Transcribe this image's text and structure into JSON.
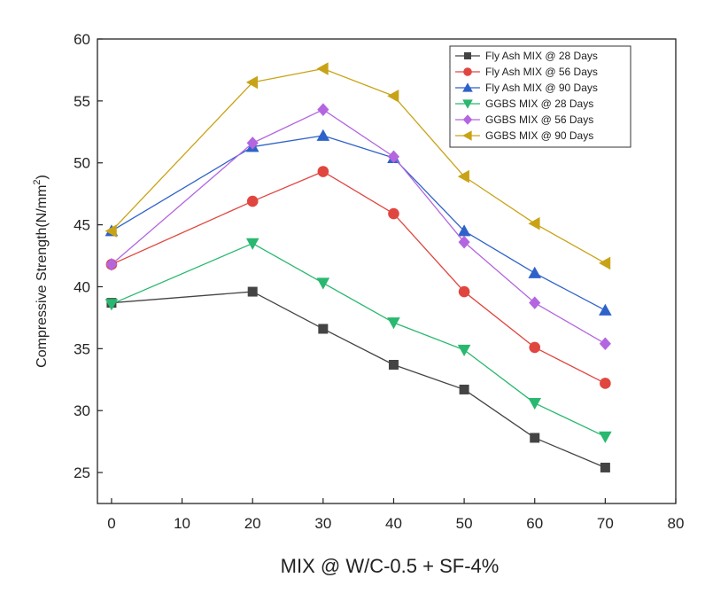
{
  "chart_data": {
    "type": "line",
    "title": "",
    "xlabel": "MIX @ W/C-0.5 + SF-4%",
    "ylabel": "Compressive Strength(N/mm",
    "ylabel_sup": "2",
    "ylabel_close": ")",
    "x": [
      0,
      20,
      30,
      40,
      50,
      60,
      70
    ],
    "xlim": [
      -2,
      80
    ],
    "ylim": [
      22.5,
      60
    ],
    "xticks": [
      0,
      10,
      20,
      30,
      40,
      50,
      60,
      70,
      80
    ],
    "yticks": [
      25,
      30,
      35,
      40,
      45,
      50,
      55,
      60
    ],
    "grid": false,
    "legend_position": "top-right",
    "series": [
      {
        "name": "Fly Ash MIX @ 28 Days",
        "color": "#444444",
        "marker": "square",
        "values": [
          38.7,
          39.6,
          36.6,
          33.7,
          31.7,
          27.8,
          25.4
        ]
      },
      {
        "name": "Fly Ash MIX @ 56 Days",
        "color": "#e0463f",
        "marker": "circle",
        "values": [
          41.8,
          46.9,
          49.3,
          45.9,
          39.6,
          35.1,
          32.2
        ]
      },
      {
        "name": "Fly Ash MIX @ 90 Days",
        "color": "#2f62c9",
        "marker": "triangle-up",
        "values": [
          44.5,
          51.3,
          52.2,
          50.4,
          44.5,
          41.1,
          38.1
        ]
      },
      {
        "name": "GGBS MIX @ 28 Days",
        "color": "#29b86f",
        "marker": "triangle-down",
        "values": [
          38.6,
          43.5,
          40.3,
          37.1,
          34.9,
          30.6,
          27.9
        ]
      },
      {
        "name": "GGBS MIX @ 56 Days",
        "color": "#b366e0",
        "marker": "diamond",
        "values": [
          41.8,
          51.6,
          54.3,
          50.5,
          43.6,
          38.7,
          35.4
        ]
      },
      {
        "name": "GGBS MIX @ 90 Days",
        "color": "#c9a316",
        "marker": "triangle-left",
        "values": [
          44.5,
          56.5,
          57.6,
          55.4,
          48.9,
          45.1,
          41.9
        ]
      }
    ]
  }
}
